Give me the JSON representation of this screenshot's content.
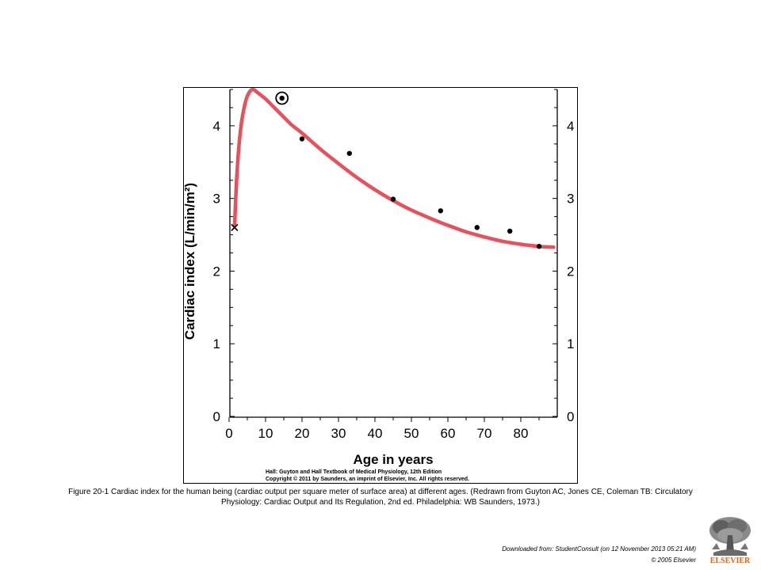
{
  "chart_data": {
    "type": "line",
    "xlabel": "Age in years",
    "ylabel": "Cardiac index (L/min/m²)",
    "xlim": [
      0,
      90
    ],
    "ylim": [
      0,
      4.5
    ],
    "x_ticks": [
      0,
      10,
      20,
      30,
      40,
      50,
      60,
      70,
      80
    ],
    "y_ticks": [
      0,
      1,
      2,
      3,
      4
    ],
    "right_axis_ticks": [
      0,
      1,
      2,
      3,
      4
    ],
    "curve_color": "#e8505b",
    "curve": {
      "x": [
        1.5,
        2,
        2.5,
        3,
        3.5,
        4,
        4.5,
        5,
        5.5,
        6,
        6.5,
        7,
        7.5,
        8,
        9,
        10,
        12,
        14,
        17,
        20,
        25,
        30,
        35,
        40,
        45,
        50,
        55,
        60,
        65,
        70,
        75,
        80,
        85,
        89
      ],
      "y": [
        2.62,
        3.2,
        3.6,
        3.88,
        4.08,
        4.22,
        4.33,
        4.41,
        4.46,
        4.49,
        4.5,
        4.49,
        4.47,
        4.45,
        4.41,
        4.37,
        4.27,
        4.17,
        4.02,
        3.9,
        3.68,
        3.48,
        3.29,
        3.12,
        2.97,
        2.84,
        2.73,
        2.63,
        2.54,
        2.47,
        2.41,
        2.37,
        2.34,
        2.33
      ]
    },
    "points": [
      {
        "x": 20,
        "y": 3.82
      },
      {
        "x": 33,
        "y": 3.62
      },
      {
        "x": 45,
        "y": 2.99
      },
      {
        "x": 58,
        "y": 2.83
      },
      {
        "x": 68,
        "y": 2.6
      },
      {
        "x": 77,
        "y": 2.55
      },
      {
        "x": 85,
        "y": 2.34
      }
    ],
    "special_markers": [
      {
        "symbol": "x",
        "x": 1.5,
        "y": 2.6
      },
      {
        "symbol": "circled-dot",
        "x": 14.5,
        "y": 4.38
      }
    ]
  },
  "credits": {
    "line1": "Hall: Guyton and Hall Textbook of Medical Physiology, 12th Edition",
    "line2": "Copyright © 2011 by Saunders, an imprint of Elsevier, Inc. All rights reserved."
  },
  "caption": "Figure 20-1 Cardiac index for the human being (cardiac output per square meter of surface area) at different ages. (Redrawn from Guyton AC, Jones CE, Coleman TB: Circulatory Physiology: Cardiac Output and Its Regulation, 2nd ed. Philadelphia: WB Saunders, 1973.)",
  "footer": {
    "downloaded": "Downloaded from: StudentConsult (on 12 November 2013 05:21 AM)",
    "copyright": "© 2005 Elsevier"
  },
  "logo": {
    "text": "ELSEVIER",
    "color": "#d2691e"
  }
}
